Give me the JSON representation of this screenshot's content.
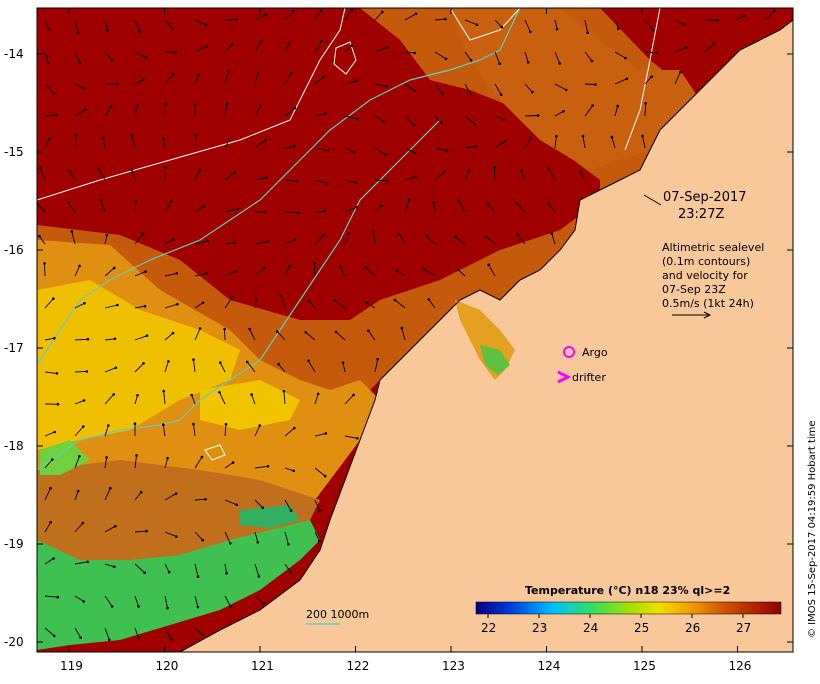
{
  "map": {
    "lat_ticks": [
      "-14",
      "-15",
      "-16",
      "-17",
      "-18",
      "-19",
      "-20"
    ],
    "lon_ticks": [
      "119",
      "120",
      "121",
      "122",
      "123",
      "124",
      "125",
      "126"
    ],
    "date_label": "07-Sep-2017",
    "time_label": "23:27Z",
    "info_lines": [
      "Altimetric sealevel",
      "(0.1m contours)",
      "and velocity for",
      "07-Sep 23Z",
      "0.5m/s (1kt 24h)"
    ],
    "legend_argo": "Argo",
    "legend_drifter": "drifter",
    "isobath_label": "200  1000m",
    "colorbar_title": "Temperature (°C) n18 23% ql>=2",
    "colorbar_ticks": [
      "22",
      "23",
      "24",
      "25",
      "26",
      "27"
    ],
    "credit": "© IMOS 15-Sep-2017 04:19:59 Hobart time",
    "colors": {
      "land": "#f9c89a",
      "warmest": "#a00000",
      "warm": "#c85000",
      "mid": "#e8a000",
      "cool": "#20c040",
      "contour_sealevel": "#ffffff",
      "isobath": "#5fcfc0",
      "argo": "#ff00ff",
      "drifter": "#ff00ff"
    }
  }
}
